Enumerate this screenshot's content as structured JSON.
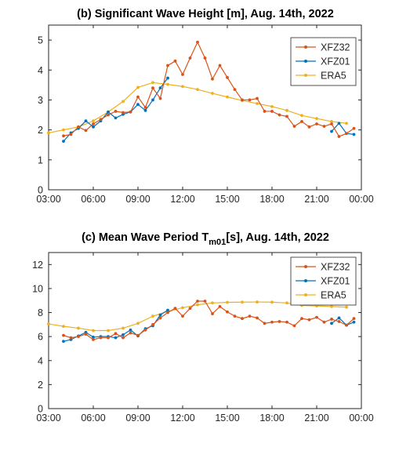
{
  "chart_data": [
    {
      "type": "line",
      "title": "(b) Significant Wave Height [m], Aug. 14th, 2022",
      "xlabel": "",
      "ylabel": "",
      "xlim": [
        3,
        24
      ],
      "ylim": [
        0,
        5.5
      ],
      "xticks": [
        3,
        6,
        9,
        12,
        15,
        18,
        21,
        24
      ],
      "xtick_labels": [
        "03:00",
        "06:00",
        "09:00",
        "12:00",
        "15:00",
        "18:00",
        "21:00",
        "00:00"
      ],
      "yticks": [
        0,
        1,
        2,
        3,
        4,
        5
      ],
      "ytick_labels": [
        "0",
        "1",
        "2",
        "3",
        "4",
        "5"
      ],
      "legend_position": "top-right",
      "grid": false,
      "series": [
        {
          "name": "XFZ32",
          "color": "#d95319",
          "x": [
            4.0,
            4.5,
            5.0,
            5.5,
            6.0,
            6.5,
            7.0,
            7.5,
            8.0,
            8.5,
            9.0,
            9.5,
            10.0,
            10.5,
            11.0,
            11.5,
            12.0,
            12.5,
            13.0,
            13.5,
            14.0,
            14.5,
            15.0,
            15.5,
            16.0,
            16.5,
            17.0,
            17.5,
            18.0,
            18.5,
            19.0,
            19.5,
            20.0,
            20.5,
            21.0,
            21.5,
            22.0,
            22.5,
            23.0,
            23.5
          ],
          "values": [
            1.8,
            1.85,
            2.1,
            1.98,
            2.2,
            2.35,
            2.5,
            2.62,
            2.58,
            2.6,
            3.1,
            2.75,
            3.4,
            3.05,
            4.15,
            4.3,
            3.85,
            4.4,
            4.93,
            4.4,
            3.7,
            4.15,
            3.75,
            3.35,
            3.0,
            3.0,
            3.05,
            2.62,
            2.62,
            2.5,
            2.45,
            2.12,
            2.28,
            2.1,
            2.2,
            2.12,
            2.2,
            1.78,
            1.88,
            2.05
          ]
        },
        {
          "name": "XFZ01",
          "color": "#0072bd",
          "x": [
            4.0,
            4.5,
            5.0,
            5.5,
            6.0,
            6.5,
            7.0,
            7.5,
            8.0,
            8.5,
            9.0,
            9.5,
            10.0,
            10.5,
            11.0,
            null,
            22.0,
            22.5,
            23.0,
            23.5
          ],
          "values": [
            1.62,
            1.9,
            2.05,
            2.3,
            2.1,
            2.3,
            2.6,
            2.4,
            2.52,
            2.6,
            2.85,
            2.65,
            3.0,
            3.4,
            3.73,
            null,
            1.95,
            2.22,
            1.88,
            1.85
          ]
        },
        {
          "name": "ERA5",
          "color": "#edb120",
          "x": [
            3,
            4,
            5,
            6,
            7,
            8,
            9,
            10,
            11,
            12,
            13,
            14,
            15,
            16,
            17,
            18,
            19,
            20,
            21,
            22,
            23
          ],
          "values": [
            1.9,
            2.0,
            2.1,
            2.3,
            2.6,
            2.95,
            3.42,
            3.58,
            3.52,
            3.45,
            3.35,
            3.22,
            3.1,
            2.98,
            2.88,
            2.78,
            2.65,
            2.48,
            2.38,
            2.28,
            2.22
          ]
        }
      ]
    },
    {
      "type": "line",
      "title": "(c) Mean Wave Period T",
      "title_sub": "m01",
      "title_rest": "[s], Aug. 14th, 2022",
      "xlabel": "",
      "ylabel": "",
      "xlim": [
        3,
        24
      ],
      "ylim": [
        0,
        13
      ],
      "xticks": [
        3,
        6,
        9,
        12,
        15,
        18,
        21,
        24
      ],
      "xtick_labels": [
        "03:00",
        "06:00",
        "09:00",
        "12:00",
        "15:00",
        "18:00",
        "21:00",
        "00:00"
      ],
      "yticks": [
        0,
        2,
        4,
        6,
        8,
        10,
        12
      ],
      "ytick_labels": [
        "0",
        "2",
        "4",
        "6",
        "8",
        "10",
        "12"
      ],
      "legend_position": "top-right",
      "grid": false,
      "series": [
        {
          "name": "XFZ32",
          "color": "#d95319",
          "x": [
            4.0,
            4.5,
            5.0,
            5.5,
            6.0,
            6.5,
            7.0,
            7.5,
            8.0,
            8.5,
            9.0,
            9.5,
            10.0,
            10.5,
            11.0,
            11.5,
            12.0,
            12.5,
            13.0,
            13.5,
            14.0,
            14.5,
            15.0,
            15.5,
            16.0,
            16.5,
            17.0,
            17.5,
            18.0,
            18.5,
            19.0,
            19.5,
            20.0,
            20.5,
            21.0,
            21.5,
            22.0,
            22.5,
            23.0,
            23.5
          ],
          "values": [
            6.1,
            5.9,
            6.0,
            6.2,
            5.75,
            5.9,
            5.9,
            6.25,
            5.9,
            6.3,
            6.1,
            6.55,
            7.0,
            7.55,
            8.0,
            8.35,
            7.7,
            8.35,
            8.95,
            8.95,
            7.9,
            8.5,
            8.05,
            7.7,
            7.5,
            7.7,
            7.55,
            7.1,
            7.2,
            7.25,
            7.2,
            6.9,
            7.5,
            7.4,
            7.6,
            7.2,
            7.45,
            7.25,
            6.95,
            7.5
          ]
        },
        {
          "name": "XFZ01",
          "color": "#0072bd",
          "x": [
            4.0,
            4.5,
            5.0,
            5.5,
            6.0,
            6.5,
            7.0,
            7.5,
            8.0,
            8.5,
            9.0,
            9.5,
            10.0,
            10.5,
            11.0,
            null,
            22.0,
            22.5,
            23.0,
            23.5
          ],
          "values": [
            5.6,
            5.75,
            6.05,
            6.35,
            5.95,
            6.0,
            6.0,
            5.9,
            6.15,
            6.55,
            6.05,
            6.65,
            6.9,
            7.8,
            8.2,
            null,
            7.1,
            7.55,
            6.95,
            7.2
          ]
        },
        {
          "name": "ERA5",
          "color": "#edb120",
          "x": [
            3,
            4,
            5,
            6,
            7,
            8,
            9,
            10,
            11,
            12,
            13,
            14,
            15,
            16,
            17,
            18,
            19,
            20,
            21,
            22,
            23
          ],
          "values": [
            7.05,
            6.85,
            6.7,
            6.5,
            6.5,
            6.7,
            7.1,
            7.7,
            8.1,
            8.4,
            8.65,
            8.8,
            8.85,
            8.87,
            8.88,
            8.87,
            8.8,
            8.6,
            8.55,
            8.5,
            8.45
          ]
        }
      ]
    }
  ]
}
